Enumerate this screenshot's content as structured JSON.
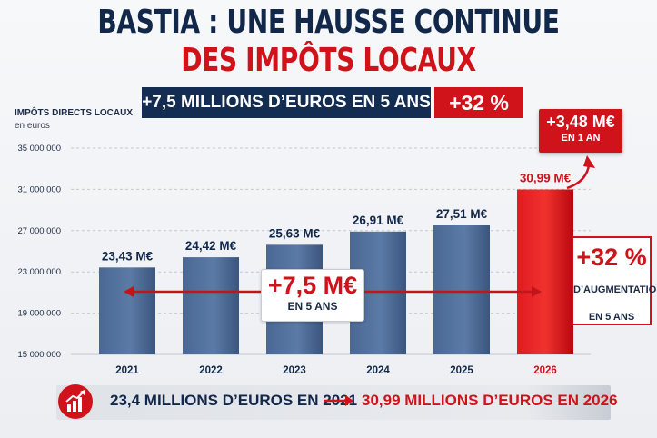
{
  "headline": {
    "line1": "BASTIA : UNE HAUSSE CONTINUE",
    "line2": "DES IMPÔTS LOCAUX"
  },
  "banner": {
    "left": "+7,5 MILLIONS D’EUROS EN 5 ANS",
    "right": "+32 %"
  },
  "callouts": {
    "top_right_value": "+3,48 M€",
    "top_right_sub": "EN 1 AN",
    "side_value": "+32 %",
    "side_line1": "D’AUGMENTATION",
    "side_line2": "EN 5 ANS",
    "middle_value": "+7,5 M€",
    "middle_sub": "EN 5 ANS"
  },
  "bottom": {
    "left": "23,4 MILLIONS D’EUROS EN 2021",
    "right": "30,99 MILLIONS D’EUROS EN 2026",
    "icon": "growth-chart-icon"
  },
  "colors": {
    "navy": "#132c52",
    "red": "#d0121b",
    "bar_blue": "#4b6894",
    "bar_red": "#e01b21"
  },
  "chart_data": {
    "type": "bar",
    "title": "IMPÔTS DIRECTS LOCAUX",
    "subtitle": "en euros",
    "categories": [
      "2021",
      "2022",
      "2023",
      "2024",
      "2025",
      "2026"
    ],
    "values": [
      23430000,
      24420000,
      25630000,
      26910000,
      27510000,
      30990000
    ],
    "data_labels": [
      "23,43 M€",
      "24,42 M€",
      "25,63 M€",
      "26,91 M€",
      "27,51 M€",
      "30,99 M€"
    ],
    "highlight_index": 5,
    "ylim": [
      15000000,
      35000000
    ],
    "y_ticks": [
      15000000,
      19000000,
      23000000,
      27000000,
      31000000,
      35000000
    ],
    "y_tick_labels": [
      "15 000 000",
      "19 000 000",
      "23 000 000",
      "27 000 000",
      "31 000 000",
      "35 000 000"
    ],
    "grid": true
  }
}
